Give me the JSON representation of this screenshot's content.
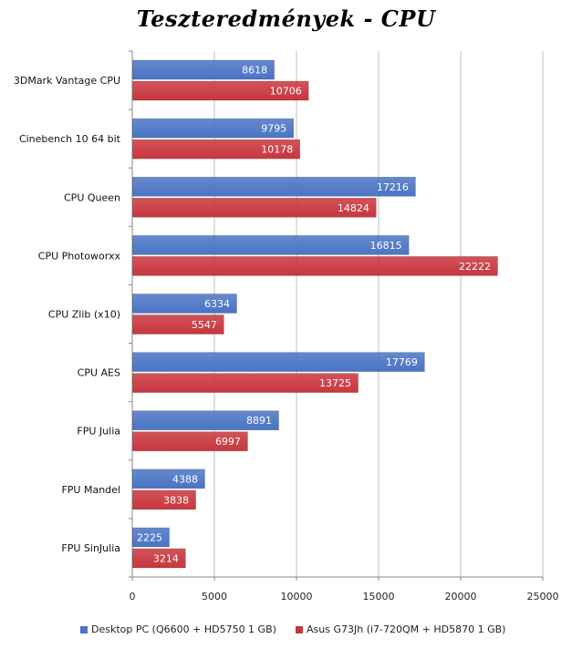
{
  "title": "Teszteredmények - CPU",
  "chart_data": {
    "type": "bar",
    "orientation": "horizontal",
    "categories": [
      "3DMark Vantage  CPU",
      "Cinebench 10 64 bit",
      "CPU Queen",
      "CPU Photoworxx",
      "CPU Zlib (x10)",
      "CPU AES",
      "FPU Julia",
      "FPU Mandel",
      "FPU SinJulia"
    ],
    "series": [
      {
        "name": "Desktop PC (Q6600 + HD5750 1 GB)",
        "color": "#4a74c4",
        "values": [
          8618,
          9795,
          17216,
          16815,
          6334,
          17769,
          8891,
          4388,
          2225
        ]
      },
      {
        "name": "Asus G73Jh (i7-720QM + HD5870 1 GB)",
        "color": "#c8363d",
        "values": [
          10706,
          10178,
          14824,
          22222,
          5547,
          13725,
          6997,
          3838,
          3214
        ]
      }
    ],
    "xlim": [
      0,
      25000
    ],
    "xticks": [
      0,
      5000,
      10000,
      15000,
      20000,
      25000
    ],
    "grid": true,
    "legend_position": "bottom"
  }
}
